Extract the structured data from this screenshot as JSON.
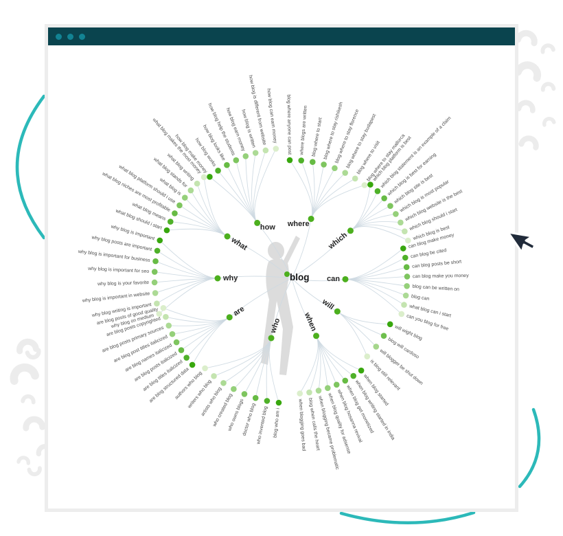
{
  "mindmap": {
    "center_label": "blog",
    "branches": [
      {
        "label": "how",
        "leaves": [
          "how blog make money",
          "how blog works",
          "how blog looks like",
          "how blog help the students",
          "how blog earn money",
          "how blog is written",
          "how blog is different from website",
          "how blog can earn money"
        ]
      },
      {
        "label": "where",
        "leaves": [
          "blog where anyone can post",
          "where blogs are written",
          "blog where to start",
          "blog where to stay rishikesh",
          "blog where to stay florence",
          "blog where to stay budapest",
          "blog where to visit",
          "blog where to stay mallorca"
        ]
      },
      {
        "label": "which",
        "leaves": [
          "which blog platform is best",
          "which blog statement is an example of a claim",
          "which blog is best for earning",
          "which blog site is best",
          "which blog is most popular",
          "which blog website is the best",
          "which blog should i start",
          "which blog is best"
        ]
      },
      {
        "label": "can",
        "leaves": [
          "can blog make money",
          "can blog be cited",
          "can blog posts be short",
          "can blog make you money",
          "blog can be written on",
          "blog can",
          "what blog can i start",
          "can you blog for free"
        ]
      },
      {
        "label": "will",
        "leaves": [
          "will wight blog",
          "blog will cardoso",
          "will blogger be shut down",
          "is blog still relevant"
        ]
      },
      {
        "label": "when",
        "leaves": [
          "when blog started",
          "when blog writing started in india",
          "when blog get monetized",
          "when blog hosanna revival",
          "when blog quality for adsense",
          "when blogging became problematic",
          "blog when calls the heart",
          "when blogging goes bad"
        ]
      },
      {
        "label": "who",
        "leaves": [
          "blog who am i",
          "who invented blog",
          "doctor who blog",
          "who owns blogs",
          "who created blog",
          "artists who blog",
          "writers who blog",
          "authors who blog"
        ]
      },
      {
        "label": "are",
        "leaves": [
          "are blog structured data",
          "are blog titles italicized",
          "are blog posts italicized",
          "are blog names italicized",
          "are blog post titles italicized",
          "are blog posts primary sources",
          "are blog posts copyrighted",
          "are blog posts of good quality"
        ]
      },
      {
        "label": "why",
        "leaves": [
          "why blog is important",
          "why blog posts are important",
          "why blog is important for business",
          "why blog is important for seo",
          "why blog is your favorite",
          "why blog is important in website",
          "why blog writing is important",
          "why blog on medium"
        ]
      },
      {
        "label": "what",
        "leaves": [
          "what blog should i start",
          "what blog means",
          "what blog niches are most profitable",
          "what blog platform should i use",
          "what blog is",
          "what blog stands for",
          "what blog writing",
          "what blog makes the most money"
        ]
      }
    ]
  },
  "colors": {
    "header_bar": "#0a444e",
    "window_dot": "#128393",
    "accent_circle": "#2cb9b9",
    "hook_gray": "#ececec",
    "line": "#cdd9e2",
    "dot_dark": "#38a70e",
    "dot_light": "#dbeecb",
    "hub_dot": "#4caf1e",
    "silhouette": "#dcdcdc",
    "cursor_fill": "#212b3a"
  }
}
